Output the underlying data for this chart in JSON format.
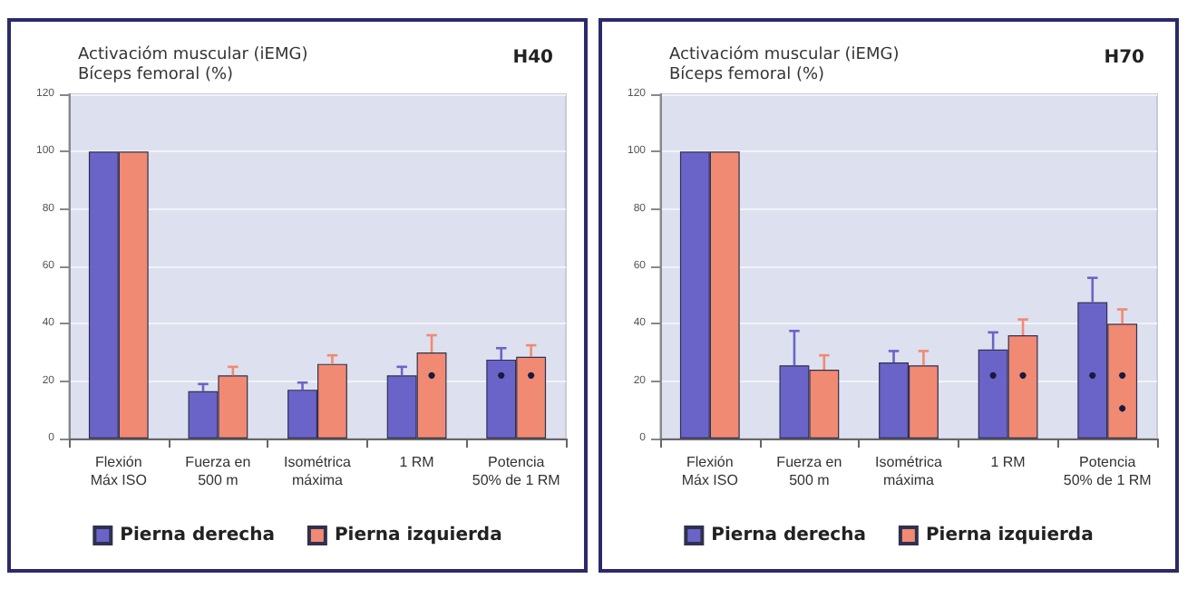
{
  "chart_data": [
    {
      "type": "bar",
      "title": "H40",
      "ylabel": "Activacióm muscular (iEMG)\nBíceps femoral (%)",
      "categories": [
        "Flexión\nMáx ISO",
        "Fuerza en\n500 m",
        "Isométrica\nmáxima",
        "1 RM",
        "Potencia\n50% de 1 RM"
      ],
      "ylim": [
        0,
        120
      ],
      "yticks": [
        0,
        20,
        40,
        60,
        80,
        100,
        120
      ],
      "grid": "y",
      "legend": "bottom",
      "series": [
        {
          "name": "Pierna derecha",
          "color": "#6a64c8",
          "values": [
            100,
            16.5,
            17,
            22,
            27.5
          ],
          "errors": [
            null,
            [
              16.5,
              19
            ],
            [
              17,
              19.5
            ],
            [
              22,
              25
            ],
            [
              27.5,
              31.5
            ]
          ]
        },
        {
          "name": "Pierna izquierda",
          "color": "#f08a72",
          "values": [
            100,
            22,
            26,
            30,
            28.5
          ],
          "errors": [
            null,
            [
              22,
              25
            ],
            [
              26,
              29
            ],
            [
              30,
              36
            ],
            [
              28.5,
              32.5
            ]
          ]
        },
        {
          "type": "scatter",
          "color": "#1a1a40",
          "marker": "circle",
          "x": [
            "Potencia\n50% de 1 RM"
          ],
          "values": [
            22
          ]
        },
        {
          "type": "scatter",
          "color": "#1a1a40",
          "marker": "circle",
          "x": [
            "1 RM",
            "Potencia\n50% de 1 RM"
          ],
          "values": [
            22,
            22
          ]
        }
      ]
    },
    {
      "type": "bar",
      "title": "H70",
      "ylabel": "Activacióm muscular (iEMG)\nBíceps femoral (%)",
      "categories": [
        "Flexión\nMáx ISO",
        "Fuerza en\n500 m",
        "Isométrica\nmáxima",
        "1 RM",
        "Potencia\n50% de 1 RM"
      ],
      "ylim": [
        0,
        120
      ],
      "yticks": [
        0,
        20,
        40,
        60,
        80,
        100,
        120
      ],
      "grid": "y",
      "legend": "bottom",
      "series": [
        {
          "name": "Pierna derecha",
          "color": "#6a64c8",
          "values": [
            100,
            25.5,
            26.5,
            31,
            47.5
          ],
          "errors": [
            null,
            [
              25.5,
              37.5
            ],
            [
              26.5,
              30.5
            ],
            [
              31,
              37
            ],
            [
              47.5,
              56
            ]
          ]
        },
        {
          "name": "Pierna izquierda",
          "color": "#f08a72",
          "values": [
            100,
            24,
            25.5,
            36,
            40
          ],
          "errors": [
            null,
            [
              24,
              29
            ],
            [
              25.5,
              30.5
            ],
            [
              36,
              41.5
            ],
            [
              40,
              45
            ]
          ]
        },
        {
          "type": "scatter",
          "color": "#1a1a40",
          "marker": "circle",
          "x": [
            "1 RM",
            "Potencia\n50% de 1 RM"
          ],
          "values": [
            22,
            22
          ]
        },
        {
          "type": "scatter",
          "color": "#1a1a40",
          "marker": "circle",
          "x": [
            "1 RM",
            "Potencia\n50% de 1 RM",
            "Potencia\n50% de 1 RM"
          ],
          "values": [
            22,
            22,
            10.5
          ]
        }
      ]
    }
  ]
}
